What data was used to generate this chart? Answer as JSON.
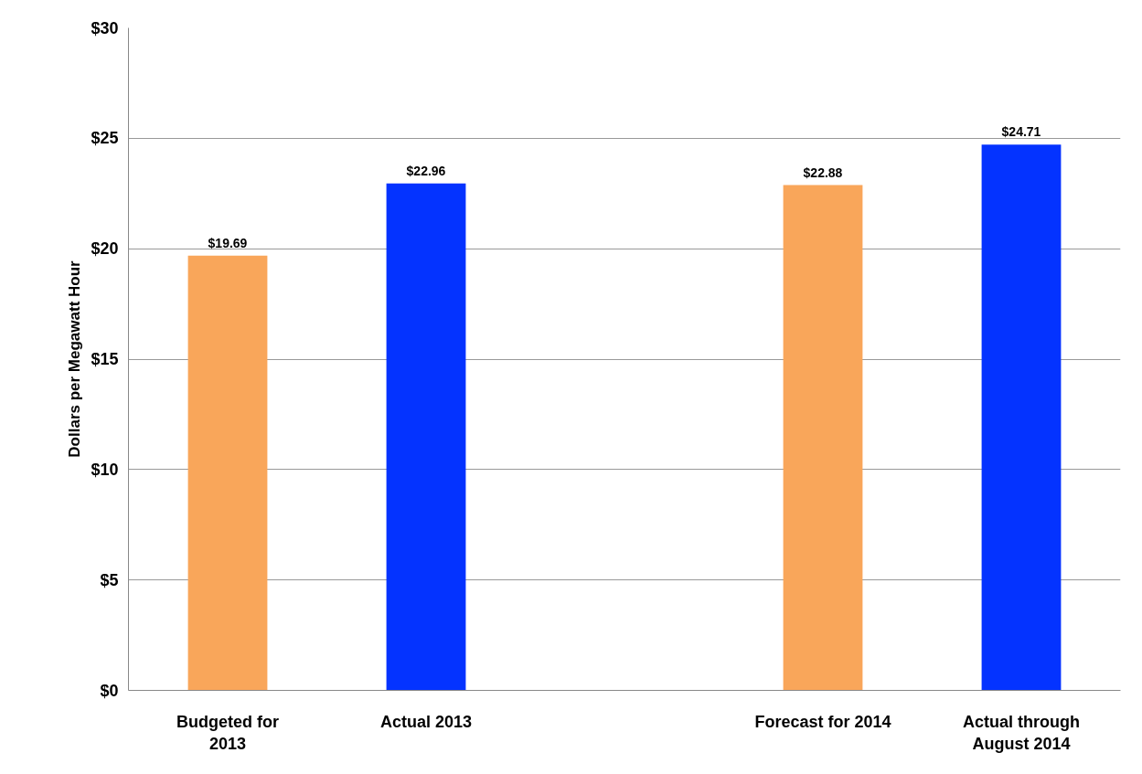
{
  "chart_data": {
    "type": "bar",
    "ylabel": "Dollars per Megawatt Hour",
    "categories": [
      "Budgeted for\n2013",
      "Actual 2013",
      null,
      "Forecast for 2014",
      "Actual through\nAugust 2014"
    ],
    "values": [
      19.69,
      22.96,
      null,
      22.88,
      24.71
    ],
    "colors": [
      "#f9a65a",
      "#0433ff",
      null,
      "#f9a65a",
      "#0433ff"
    ],
    "value_labels": [
      "$19.69",
      "$22.96",
      null,
      "$22.88",
      "$24.71"
    ],
    "ylim": [
      0,
      30
    ],
    "yticks": [
      {
        "value": 0,
        "label": "$0"
      },
      {
        "value": 5,
        "label": "$5"
      },
      {
        "value": 10,
        "label": "$10"
      },
      {
        "value": 15,
        "label": "$15"
      },
      {
        "value": 20,
        "label": "$20"
      },
      {
        "value": 25,
        "label": "$25"
      },
      {
        "value": 30,
        "label": "$30"
      }
    ],
    "grid": "y"
  }
}
